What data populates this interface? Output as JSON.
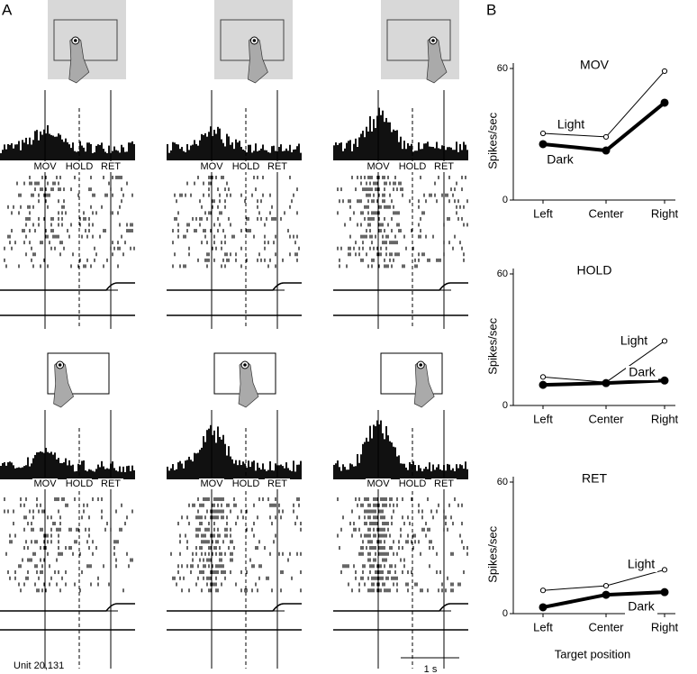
{
  "panel_a": {
    "label": "A",
    "events": [
      "MOV",
      "HOLD",
      "RET"
    ],
    "unit": "Unit 20,131",
    "scale_bar": "1 s"
  },
  "panel_b": {
    "label": "B",
    "x_label": "Target position"
  },
  "chart_data": [
    {
      "type": "line",
      "title": "MOV",
      "y_label": "Spikes/sec",
      "categories": [
        "Left",
        "Center",
        "Right"
      ],
      "ylim": [
        0,
        60
      ],
      "yticks": [
        0,
        60
      ],
      "series": [
        {
          "name": "Light",
          "color": "#000000",
          "values": [
            30.4,
            28.8,
            58.8
          ]
        },
        {
          "name": "Dark",
          "color": "#000000",
          "values": [
            25.5,
            22.6,
            44.4
          ]
        }
      ]
    },
    {
      "type": "line",
      "title": "HOLD",
      "y_label": "Spikes/sec",
      "categories": [
        "Left",
        "Center",
        "Right"
      ],
      "ylim": [
        0,
        60
      ],
      "yticks": [
        0,
        60
      ],
      "series": [
        {
          "name": "Light",
          "color": "#000000",
          "values": [
            13,
            10.6,
            29.4
          ]
        },
        {
          "name": "Dark",
          "color": "#000000",
          "values": [
            9.4,
            10.2,
            11.4
          ]
        }
      ]
    },
    {
      "type": "line",
      "title": "RET",
      "y_label": "Spikes/sec",
      "categories": [
        "Left",
        "Center",
        "Right"
      ],
      "ylim": [
        0,
        60
      ],
      "yticks": [
        0,
        60
      ],
      "series": [
        {
          "name": "Light",
          "color": "#000000",
          "values": [
            10.6,
            12.7,
            20
          ]
        },
        {
          "name": "Dark",
          "color": "#000000",
          "values": [
            2.9,
            8.6,
            9.8
          ]
        }
      ]
    }
  ]
}
